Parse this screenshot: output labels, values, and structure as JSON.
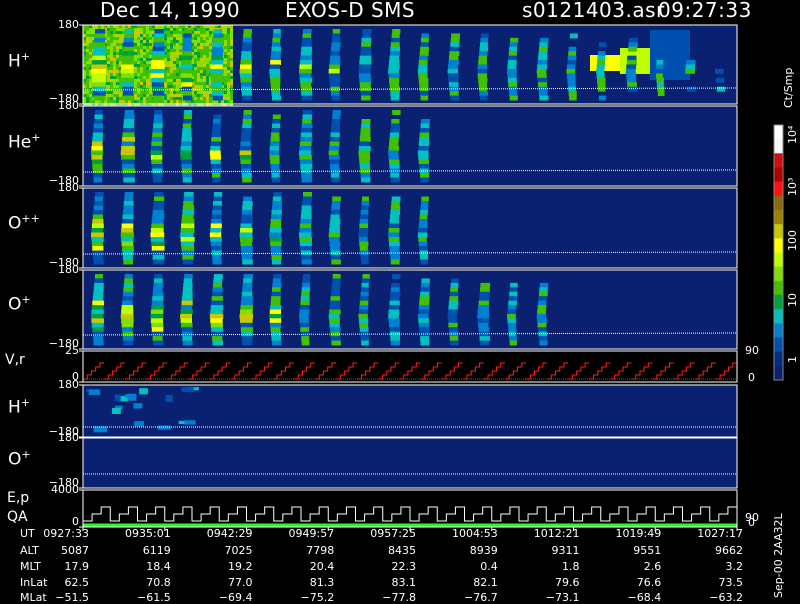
{
  "header": {
    "date": "Dec 14, 1990",
    "instrument": "EXOS-D SMS",
    "file": "s0121403.asr",
    "time": "09:27:33"
  },
  "panels": [
    {
      "id": "h-plus",
      "label": "H",
      "sup": "+",
      "top_tick": "180",
      "bottom_tick": "−180"
    },
    {
      "id": "he-plus",
      "label": "He",
      "sup": "+",
      "top_tick": "180",
      "bottom_tick": "−180"
    },
    {
      "id": "o-plusplus",
      "label": "O",
      "sup": "++",
      "top_tick": "180",
      "bottom_tick": "−180"
    },
    {
      "id": "o-plus",
      "label": "O",
      "sup": "+",
      "top_tick": "180",
      "bottom_tick": "−180"
    },
    {
      "id": "vr",
      "label": "V,r",
      "sup": "",
      "top_tick": "25",
      "bottom_tick": "0",
      "right_top": "90",
      "right_bottom": "0"
    },
    {
      "id": "h-plus-2",
      "label": "H",
      "sup": "+",
      "top_tick": "180",
      "bottom_tick": "−180"
    },
    {
      "id": "o-plus-2",
      "label": "O",
      "sup": "+",
      "top_tick": "180",
      "bottom_tick": "−180"
    },
    {
      "id": "ep",
      "label": "E,p",
      "sup": "",
      "label2": "QA",
      "top_tick": "4000",
      "bottom_tick": "0",
      "right_top": "90",
      "right_bottom": "0"
    }
  ],
  "colorbar": {
    "unit_label": "Ct/Smp",
    "ticks": [
      "10⁴",
      "10³",
      "100",
      "10",
      "1"
    ],
    "colors": [
      "#ffffff",
      "#f8f8f8",
      "#d01010",
      "#b00000",
      "#ff1010",
      "#8b6914",
      "#a08000",
      "#c8c800",
      "#ffff00",
      "#c0ff00",
      "#80e000",
      "#40c000",
      "#00a040",
      "#00c0c0",
      "#0080d0",
      "#0050b0",
      "#003080",
      "#0a2070"
    ]
  },
  "side_label": "Sep-00 2AA32L",
  "table": {
    "headers": [
      "UT",
      "ALT",
      "MLT",
      "InLat",
      "MLat"
    ],
    "columns": [
      [
        "0927:33",
        "5087",
        "17.9",
        "62.5",
        "−51.5"
      ],
      [
        "0935:01",
        "6119",
        "18.4",
        "70.8",
        "−61.5"
      ],
      [
        "0942:29",
        "7025",
        "19.2",
        "77.0",
        "−69.4"
      ],
      [
        "0949:57",
        "7798",
        "20.4",
        "81.3",
        "−75.2"
      ],
      [
        "0957:25",
        "8435",
        "22.3",
        "83.1",
        "−77.8"
      ],
      [
        "1004:53",
        "8939",
        "0.4",
        "82.1",
        "−76.7"
      ],
      [
        "1012:21",
        "9311",
        "1.8",
        "79.6",
        "−73.1"
      ],
      [
        "1019:49",
        "9551",
        "2.6",
        "76.6",
        "−68.4"
      ],
      [
        "1027:17",
        "9662",
        "3.2",
        "73.5",
        "−63.2"
      ]
    ]
  },
  "chart_data": {
    "type": "heatmap",
    "title": "Dec 14, 1990 EXOS-D SMS",
    "x_ticks": [
      "0927:33",
      "0935:01",
      "0942:29",
      "0949:57",
      "0957:25",
      "1004:53",
      "1012:21",
      "1019:49",
      "1027:17"
    ],
    "panel_ylim": {
      "H+": [
        -180,
        180
      ],
      "He+": [
        -180,
        180
      ],
      "O++": [
        -180,
        180
      ],
      "O+": [
        -180,
        180
      ],
      "V,r": [
        0,
        25
      ],
      "H+ (2)": [
        -180,
        180
      ],
      "O+ (2)": [
        -180,
        180
      ],
      "E,p": [
        0,
        4000
      ]
    },
    "colorscale": {
      "label": "Ct/Smp",
      "range": [
        1,
        10000
      ],
      "log": true
    },
    "burst_count": 22
  }
}
